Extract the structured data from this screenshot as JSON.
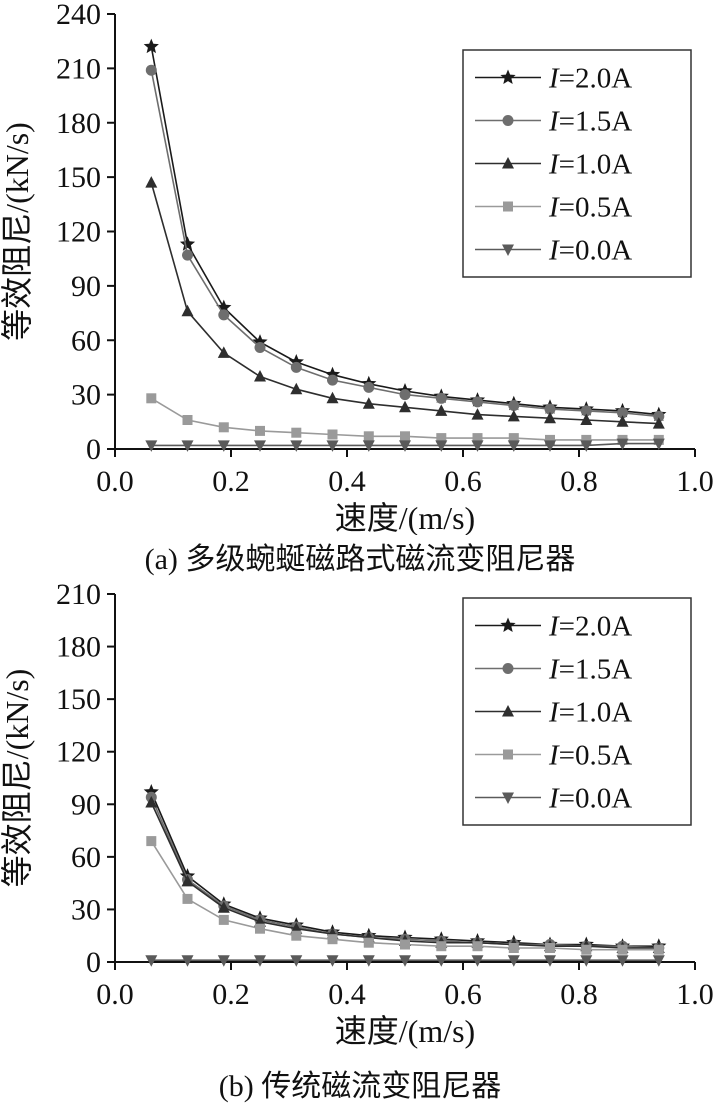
{
  "page": {
    "background": "#ffffff"
  },
  "chart_data": [
    {
      "type": "line",
      "caption": "(a) 多级蜿蜒磁路式磁流变阻尼器",
      "xlabel": "速度/(m/s)",
      "ylabel": "等效阻尼/(kN/s)",
      "xlim": [
        0.0,
        1.0
      ],
      "ylim": [
        0,
        240
      ],
      "xticks": [
        0.0,
        0.2,
        0.4,
        0.6,
        0.8,
        1.0
      ],
      "xtick_labels": [
        "0.0",
        "0.2",
        "0.4",
        "0.6",
        "0.8",
        "1.0"
      ],
      "yticks": [
        0,
        30,
        60,
        90,
        120,
        150,
        180,
        210,
        240
      ],
      "ytick_labels": [
        "0",
        "30",
        "60",
        "90",
        "120",
        "150",
        "180",
        "210",
        "240"
      ],
      "grid": false,
      "legend_position": "top-right",
      "x": [
        0.0625,
        0.125,
        0.1875,
        0.25,
        0.3125,
        0.375,
        0.4375,
        0.5,
        0.5625,
        0.625,
        0.6875,
        0.75,
        0.8125,
        0.875,
        0.9375
      ],
      "series": [
        {
          "name": "I=2.0A",
          "label": "I=2.0A",
          "marker": "star",
          "color": "#1a1a1a",
          "values": [
            222,
            113,
            78,
            59,
            48,
            41,
            36,
            32,
            29,
            27,
            25,
            23,
            22,
            21,
            19
          ]
        },
        {
          "name": "I=1.5A",
          "label": "I=1.5A",
          "marker": "circle",
          "color": "#6e6e6e",
          "values": [
            209,
            107,
            74,
            56,
            45,
            38,
            34,
            30,
            28,
            26,
            24,
            22,
            21,
            20,
            18
          ]
        },
        {
          "name": "I=1.0A",
          "label": "I=1.0A",
          "marker": "triangle-up",
          "color": "#2e2e2e",
          "values": [
            147,
            76,
            53,
            40,
            33,
            28,
            25,
            23,
            21,
            19,
            18,
            17,
            16,
            15,
            14
          ]
        },
        {
          "name": "I=0.5A",
          "label": "I=0.5A",
          "marker": "square",
          "color": "#9a9a9a",
          "values": [
            28,
            16,
            12,
            10,
            9,
            8,
            7,
            7,
            6,
            6,
            6,
            5,
            5,
            5,
            5
          ]
        },
        {
          "name": "I=0.0A",
          "label": "I=0.0A",
          "marker": "triangle-down",
          "color": "#5a5a5a",
          "values": [
            2,
            2,
            2,
            2,
            2,
            2,
            2,
            2,
            2,
            2,
            2,
            2,
            2,
            3,
            3
          ]
        }
      ]
    },
    {
      "type": "line",
      "caption": "(b) 传统磁流变阻尼器",
      "xlabel": "速度/(m/s)",
      "ylabel": "等效阻尼/(kN/s)",
      "xlim": [
        0.0,
        1.0
      ],
      "ylim": [
        0,
        210
      ],
      "xticks": [
        0.0,
        0.2,
        0.4,
        0.6,
        0.8,
        1.0
      ],
      "xtick_labels": [
        "0.0",
        "0.2",
        "0.4",
        "0.6",
        "0.8",
        "1.0"
      ],
      "yticks": [
        0,
        30,
        60,
        90,
        120,
        150,
        180,
        210
      ],
      "ytick_labels": [
        "0",
        "30",
        "60",
        "90",
        "120",
        "150",
        "180",
        "210"
      ],
      "grid": false,
      "legend_position": "top-right",
      "x": [
        0.0625,
        0.125,
        0.1875,
        0.25,
        0.3125,
        0.375,
        0.4375,
        0.5,
        0.5625,
        0.625,
        0.6875,
        0.75,
        0.8125,
        0.875,
        0.9375
      ],
      "series": [
        {
          "name": "I=2.0A",
          "label": "I=2.0A",
          "marker": "star",
          "color": "#1a1a1a",
          "values": [
            97,
            49,
            33,
            25,
            21,
            17,
            15,
            14,
            13,
            12,
            11,
            10,
            10,
            9,
            9
          ]
        },
        {
          "name": "I=1.5A",
          "label": "I=1.5A",
          "marker": "circle",
          "color": "#6e6e6e",
          "values": [
            94,
            47,
            32,
            24,
            20,
            16,
            14,
            13,
            12,
            11,
            10,
            10,
            9,
            9,
            8
          ]
        },
        {
          "name": "I=1.0A",
          "label": "I=1.0A",
          "marker": "triangle-up",
          "color": "#2e2e2e",
          "values": [
            91,
            46,
            31,
            23,
            19,
            16,
            14,
            12,
            11,
            11,
            10,
            9,
            9,
            8,
            8
          ]
        },
        {
          "name": "I=0.5A",
          "label": "I=0.5A",
          "marker": "square",
          "color": "#9a9a9a",
          "values": [
            69,
            36,
            24,
            19,
            15,
            13,
            11,
            10,
            9,
            9,
            8,
            8,
            7,
            7,
            7
          ]
        },
        {
          "name": "I=0.0A",
          "label": "I=0.0A",
          "marker": "triangle-down",
          "color": "#5a5a5a",
          "values": [
            1,
            1,
            1,
            1,
            1,
            1,
            1,
            1,
            1,
            1,
            1,
            1,
            1,
            1,
            1
          ]
        }
      ]
    }
  ]
}
